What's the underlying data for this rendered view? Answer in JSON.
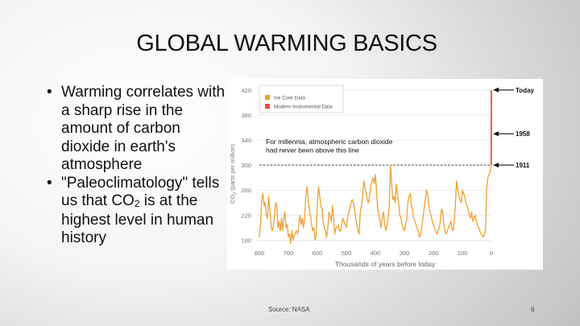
{
  "slide": {
    "title": "GLOBAL WARMING BASICS",
    "bullets": [
      {
        "text": "Warming correlates with a sharp rise in the amount of carbon dioxide in earth's atmosphere"
      },
      {
        "before": "\"Paleoclimatology\" tells us that CO",
        "sub": "2",
        "after": " is at the highest level in human history"
      }
    ],
    "source": "Source: NASA",
    "page_number": "6"
  },
  "chart_data": {
    "type": "line",
    "title": "",
    "xlabel": "Thousands of years before today",
    "ylabel_main": "CO",
    "ylabel_sub": "2",
    "ylabel_tail": " (parts per million)",
    "xlim": [
      800,
      0
    ],
    "ylim": [
      160,
      430
    ],
    "x_ticks": [
      800,
      700,
      600,
      500,
      400,
      300,
      200,
      100,
      0
    ],
    "y_ticks": [
      180,
      220,
      260,
      300,
      340,
      380,
      420
    ],
    "legend": [
      {
        "label": "Ice Core Data",
        "color": "#f0a030"
      },
      {
        "label": "Modern Instrumental Data",
        "color": "#e8503a"
      }
    ],
    "reference_line": {
      "y": 300,
      "label_line1": "For millennia, atmospheric carbon dioxide",
      "label_line2": "had never been above this line"
    },
    "annotations": [
      {
        "label": "Today",
        "y": 420
      },
      {
        "label": "1958",
        "y": 350
      },
      {
        "label": "1911",
        "y": 300
      }
    ],
    "series": [
      {
        "name": "Ice Core Data",
        "color": "#f0a030",
        "x": [
          800,
          796,
          792,
          788,
          784,
          780,
          776,
          772,
          768,
          764,
          760,
          756,
          752,
          748,
          744,
          740,
          736,
          732,
          728,
          724,
          720,
          716,
          712,
          708,
          704,
          700,
          696,
          692,
          688,
          684,
          680,
          676,
          672,
          668,
          664,
          660,
          656,
          652,
          648,
          644,
          640,
          636,
          632,
          628,
          624,
          620,
          616,
          612,
          608,
          604,
          600,
          596,
          592,
          588,
          584,
          580,
          576,
          572,
          568,
          564,
          560,
          556,
          552,
          548,
          544,
          540,
          536,
          532,
          528,
          524,
          520,
          516,
          512,
          508,
          504,
          500,
          496,
          492,
          488,
          484,
          480,
          476,
          472,
          468,
          464,
          460,
          456,
          452,
          448,
          444,
          440,
          436,
          432,
          428,
          424,
          420,
          416,
          412,
          408,
          404,
          400,
          396,
          392,
          388,
          384,
          380,
          376,
          372,
          368,
          364,
          360,
          356,
          352,
          348,
          344,
          340,
          336,
          332,
          328,
          324,
          320,
          316,
          312,
          308,
          304,
          300,
          296,
          292,
          288,
          284,
          280,
          276,
          272,
          268,
          264,
          260,
          256,
          252,
          248,
          244,
          240,
          236,
          232,
          228,
          224,
          220,
          216,
          212,
          208,
          204,
          200,
          196,
          192,
          188,
          184,
          180,
          176,
          172,
          168,
          164,
          160,
          156,
          152,
          148,
          144,
          140,
          136,
          132,
          128,
          124,
          120,
          116,
          112,
          108,
          104,
          100,
          96,
          92,
          88,
          84,
          80,
          76,
          72,
          68,
          64,
          60,
          56,
          52,
          48,
          44,
          40,
          36,
          32,
          28,
          24,
          20,
          16,
          12,
          8,
          4,
          2,
          1
        ],
        "values": [
          185,
          205,
          245,
          255,
          235,
          240,
          220,
          215,
          250,
          230,
          205,
          195,
          200,
          220,
          240,
          235,
          200,
          210,
          195,
          215,
          195,
          215,
          225,
          200,
          205,
          185,
          190,
          175,
          195,
          180,
          188,
          192,
          195,
          190,
          205,
          220,
          205,
          215,
          200,
          215,
          250,
          265,
          245,
          230,
          220,
          205,
          195,
          200,
          180,
          190,
          240,
          265,
          250,
          235,
          230,
          210,
          200,
          195,
          185,
          200,
          225,
          220,
          210,
          235,
          215,
          190,
          200,
          200,
          205,
          195,
          195,
          205,
          215,
          210,
          205,
          200,
          215,
          225,
          230,
          240,
          245,
          240,
          230,
          215,
          205,
          195,
          190,
          225,
          235,
          250,
          275,
          265,
          255,
          245,
          240,
          250,
          265,
          275,
          280,
          270,
          285,
          260,
          230,
          220,
          210,
          200,
          215,
          225,
          205,
          195,
          205,
          215,
          235,
          300,
          270,
          245,
          250,
          240,
          270,
          255,
          240,
          220,
          215,
          205,
          200,
          195,
          205,
          215,
          240,
          250,
          255,
          235,
          230,
          215,
          210,
          205,
          200,
          195,
          185,
          190,
          200,
          215,
          230,
          245,
          260,
          255,
          235,
          225,
          220,
          210,
          205,
          200,
          195,
          190,
          195,
          200,
          210,
          230,
          225,
          205,
          195,
          190,
          195,
          200,
          205,
          210,
          200,
          195,
          210,
          240,
          275,
          260,
          250,
          245,
          240,
          260,
          255,
          250,
          240,
          235,
          230,
          220,
          215,
          225,
          210,
          215,
          220,
          210,
          205,
          200,
          195,
          190,
          188,
          185,
          190,
          200,
          265,
          280,
          285,
          290,
          295,
          300
        ]
      },
      {
        "name": "Modern Instrumental Data",
        "color": "#e8503a",
        "x": [
          0.6,
          0.5,
          0.3,
          0.1,
          0
        ],
        "values": [
          300,
          315,
          350,
          390,
          420
        ]
      }
    ]
  }
}
